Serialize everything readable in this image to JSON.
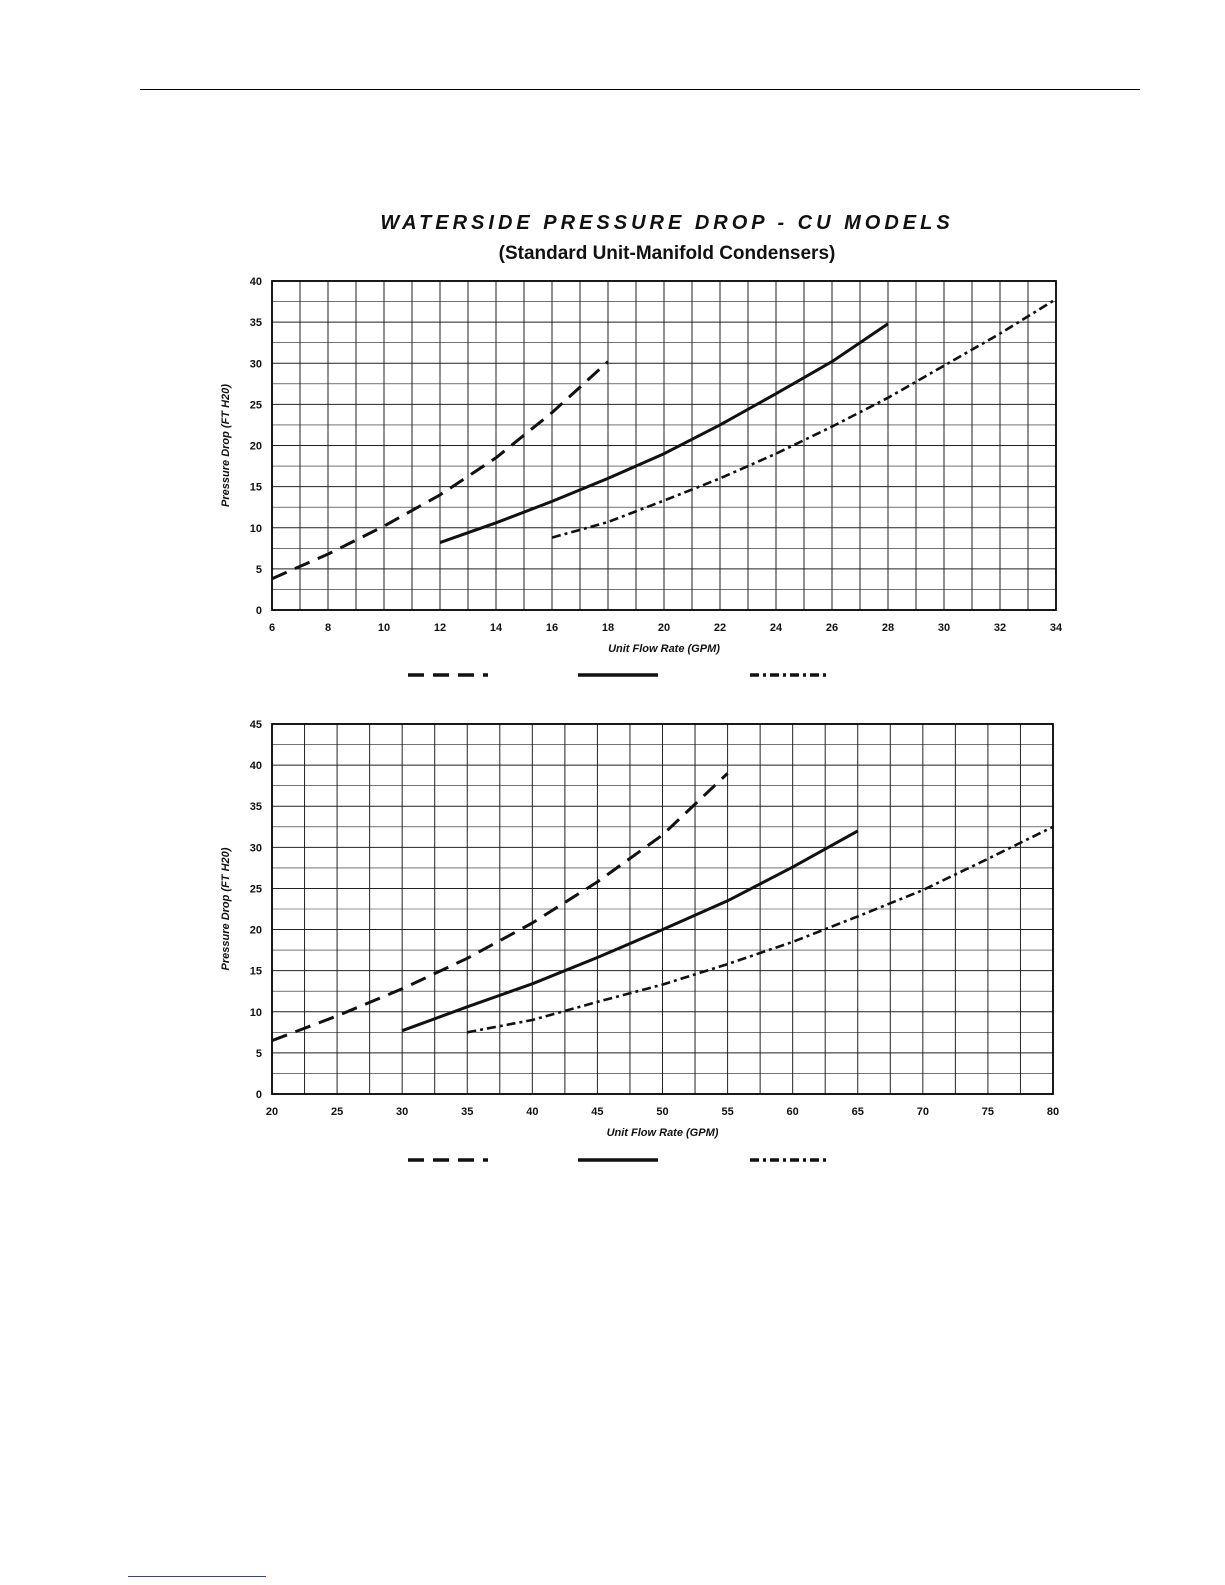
{
  "page": {
    "title": "WATERSIDE PRESSURE DROP - CU MODELS",
    "subtitle": "(Standard Unit-Manifold Condensers)"
  },
  "chart_data": [
    {
      "type": "line",
      "title": "WATERSIDE PRESSURE DROP - CU MODELS",
      "subtitle": "(Standard Unit-Manifold Condensers)",
      "xlabel": "Unit Flow Rate (GPM)",
      "ylabel": "Pressure Drop (FT H20)",
      "xlim": [
        6,
        34
      ],
      "ylim": [
        0,
        40
      ],
      "x_ticks": [
        "6",
        "8",
        "10",
        "12",
        "14",
        "16",
        "18",
        "20",
        "22",
        "24",
        "26",
        "28",
        "30",
        "32",
        "34"
      ],
      "y_ticks": [
        "0",
        "5",
        "10",
        "15",
        "20",
        "25",
        "30",
        "35",
        "40"
      ],
      "grid": true,
      "legend_placement": "bottom",
      "series": [
        {
          "style": "dashed",
          "x": [
            6,
            8,
            10,
            12,
            14,
            16,
            18
          ],
          "y": [
            3.8,
            6.8,
            10.2,
            14.0,
            18.5,
            24.0,
            30.2
          ]
        },
        {
          "style": "solid",
          "x": [
            12,
            14,
            16,
            18,
            20,
            22,
            24,
            26,
            28
          ],
          "y": [
            8.2,
            10.6,
            13.2,
            16.0,
            19.0,
            22.5,
            26.3,
            30.2,
            34.8
          ]
        },
        {
          "style": "dash-dot",
          "x": [
            16,
            18,
            20,
            22,
            24,
            26,
            28,
            30,
            32,
            34
          ],
          "y": [
            8.8,
            10.7,
            13.3,
            16.0,
            19.0,
            22.3,
            25.8,
            29.7,
            33.6,
            37.8
          ]
        }
      ]
    },
    {
      "type": "line",
      "xlabel": "Unit Flow Rate (GPM)",
      "ylabel": "Pressure Drop (FT H20)",
      "xlim": [
        20,
        80
      ],
      "ylim": [
        0,
        45
      ],
      "x_ticks": [
        "20",
        "25",
        "30",
        "35",
        "40",
        "45",
        "50",
        "55",
        "60",
        "65",
        "70",
        "75",
        "80"
      ],
      "y_ticks": [
        "0",
        "5",
        "10",
        "15",
        "20",
        "25",
        "30",
        "35",
        "40",
        "45"
      ],
      "grid": true,
      "legend_placement": "bottom",
      "series": [
        {
          "style": "dashed",
          "x": [
            20,
            25,
            30,
            35,
            40,
            45,
            50,
            55
          ],
          "y": [
            6.5,
            9.5,
            12.8,
            16.5,
            20.8,
            25.8,
            31.5,
            39.0
          ]
        },
        {
          "style": "solid",
          "x": [
            30,
            35,
            40,
            45,
            50,
            55,
            60,
            65
          ],
          "y": [
            7.7,
            10.6,
            13.4,
            16.6,
            20.0,
            23.5,
            27.6,
            32.0
          ]
        },
        {
          "style": "dash-dot",
          "x": [
            35,
            40,
            45,
            50,
            55,
            60,
            65,
            70,
            75,
            80
          ],
          "y": [
            7.5,
            9.0,
            11.2,
            13.3,
            15.8,
            18.5,
            21.6,
            24.8,
            28.6,
            32.5
          ]
        }
      ]
    }
  ]
}
